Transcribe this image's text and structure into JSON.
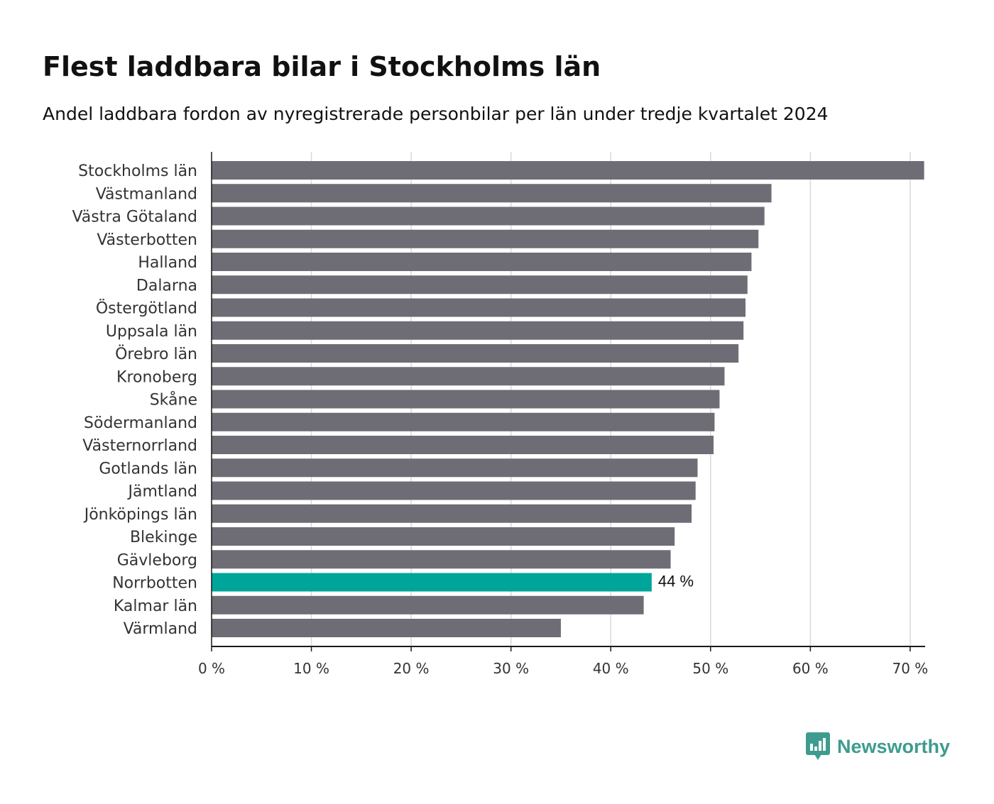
{
  "header": {
    "title": "Flest laddbara bilar i Stockholms län",
    "subtitle": "Andel laddbara fordon av nyregistrerade personbilar per län under tredje kvartalet 2024"
  },
  "brand": {
    "name": "Newsworthy",
    "icon": "newsworthy-logo-icon",
    "color": "#3d9c8e"
  },
  "colors": {
    "bar": "#6e6d75",
    "highlight": "#00a59a",
    "grid": "#d9d9d9",
    "axis": "#1a1a1a",
    "text": "#333333"
  },
  "chart_data": {
    "type": "bar",
    "orientation": "horizontal",
    "title": "Flest laddbara bilar i Stockholms län",
    "subtitle": "Andel laddbara fordon av nyregistrerade personbilar per län under tredje kvartalet 2024",
    "xlabel": "",
    "ylabel": "",
    "xlim": [
      0,
      71.5
    ],
    "grid": true,
    "categories": [
      "Stockholms län",
      "Västmanland",
      "Västra Götaland",
      "Västerbotten",
      "Halland",
      "Dalarna",
      "Östergötland",
      "Uppsala län",
      "Örebro län",
      "Kronoberg",
      "Skåne",
      "Södermanland",
      "Västernorrland",
      "Gotlands län",
      "Jämtland",
      "Jönköpings län",
      "Blekinge",
      "Gävleborg",
      "Norrbotten",
      "Kalmar län",
      "Värmland"
    ],
    "values": [
      71.4,
      56.1,
      55.4,
      54.8,
      54.1,
      53.7,
      53.5,
      53.3,
      52.8,
      51.4,
      50.9,
      50.4,
      50.3,
      48.7,
      48.5,
      48.1,
      46.4,
      46.0,
      44.1,
      43.3,
      35.0
    ],
    "highlight": "Norrbotten",
    "highlight_label": "44 %",
    "ticks": [
      0,
      10,
      20,
      30,
      40,
      50,
      60,
      70
    ],
    "tick_labels": [
      "0 %",
      "10 %",
      "20 %",
      "30 %",
      "40 %",
      "50 %",
      "60 %",
      "70 %"
    ]
  }
}
